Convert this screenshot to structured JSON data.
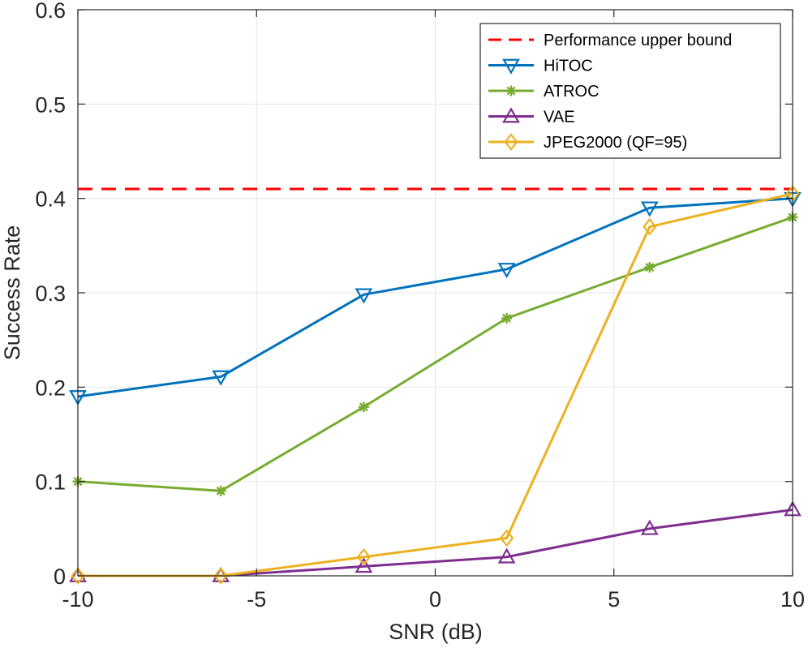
{
  "chart_data": {
    "type": "line",
    "title": "",
    "xlabel": "SNR (dB)",
    "ylabel": "Success Rate",
    "xlim": [
      -10,
      10
    ],
    "ylim": [
      0,
      0.6
    ],
    "xticks": [
      -10,
      -5,
      0,
      5,
      10
    ],
    "yticks": [
      0,
      0.1,
      0.2,
      0.3,
      0.4,
      0.5,
      0.6
    ],
    "xtick_labels": [
      "-10",
      "-5",
      "0",
      "5",
      "10"
    ],
    "ytick_labels": [
      "0",
      "0.1",
      "0.2",
      "0.3",
      "0.4",
      "0.5",
      "0.6"
    ],
    "grid": true,
    "legend_position": "top-right",
    "x": [
      -10,
      -6,
      -2,
      2,
      6,
      10
    ],
    "reference_line": {
      "name": "Performance upper bound",
      "value": 0.41,
      "color": "#ff0000",
      "style": "dashed"
    },
    "series": [
      {
        "name": "HiTOC",
        "color": "#0072bd",
        "marker": "triangle-down",
        "values": [
          0.19,
          0.211,
          0.298,
          0.325,
          0.39,
          0.4
        ]
      },
      {
        "name": "ATROC",
        "color": "#77ac30",
        "marker": "asterisk",
        "values": [
          0.1,
          0.09,
          0.179,
          0.273,
          0.327,
          0.38
        ]
      },
      {
        "name": "VAE",
        "color": "#7e2f8e",
        "marker": "triangle-up",
        "values": [
          0.0,
          0.0,
          0.01,
          0.02,
          0.05,
          0.07
        ]
      },
      {
        "name": "JPEG2000 (QF=95)",
        "color": "#edb120",
        "marker": "diamond",
        "values": [
          0.0,
          0.0,
          0.02,
          0.04,
          0.37,
          0.405
        ]
      }
    ]
  }
}
